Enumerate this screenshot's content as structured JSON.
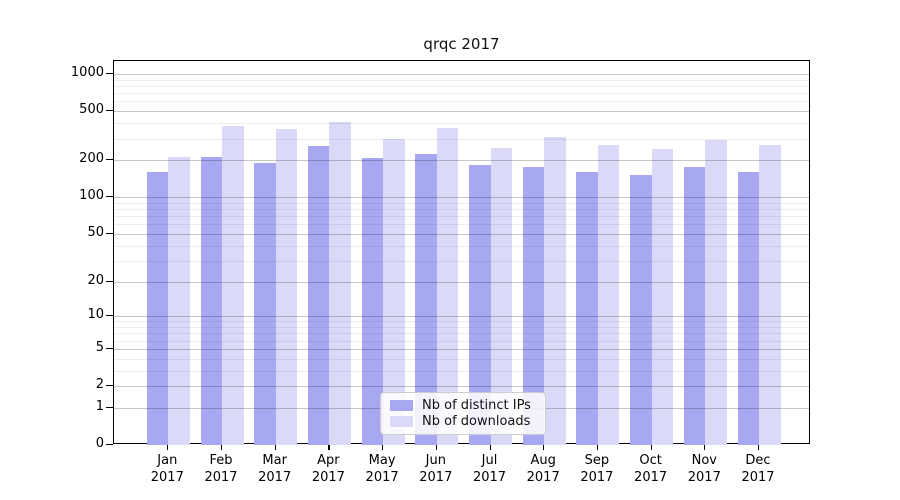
{
  "title": "qrqc 2017",
  "chart_data": {
    "type": "bar",
    "title": "qrqc 2017",
    "categories": [
      "Jan",
      "Feb",
      "Mar",
      "Apr",
      "May",
      "Jun",
      "Jul",
      "Aug",
      "Sep",
      "Oct",
      "Nov",
      "Dec"
    ],
    "category_year": "2017",
    "series": [
      {
        "name": "Nb of distinct IPs",
        "color": "#a8a8f2",
        "values": [
          160,
          212,
          190,
          260,
          210,
          226,
          184,
          176,
          162,
          152,
          175,
          160
        ]
      },
      {
        "name": "Nb of downloads",
        "color": "#dadaf8",
        "values": [
          211,
          377,
          356,
          411,
          296,
          367,
          250,
          307,
          266,
          245,
          292,
          265
        ]
      }
    ],
    "y_scale": "log1p",
    "y_ticks": [
      0,
      1,
      2,
      5,
      10,
      20,
      50,
      100,
      200,
      500,
      1000
    ],
    "y_minor_ticks": [
      3,
      4,
      6,
      7,
      8,
      9,
      30,
      40,
      60,
      70,
      80,
      90,
      300,
      400,
      600,
      700,
      800,
      900
    ],
    "ylim": [
      0,
      1290
    ],
    "grid": "major-and-minor",
    "legend_position": "lower-center"
  }
}
